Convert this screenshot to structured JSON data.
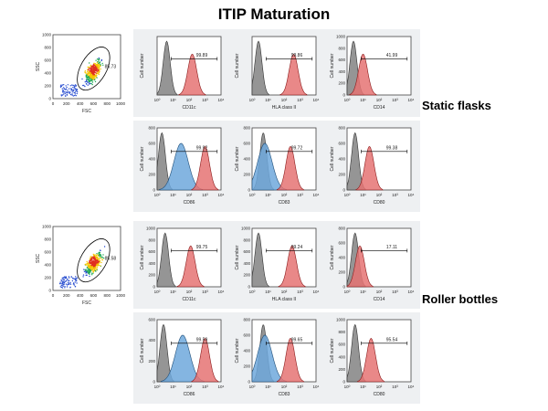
{
  "page_title": "ITIP Maturation",
  "colors": {
    "gray_fill": "#8a8a8a",
    "red_fill": "#e57373",
    "blue_fill": "#6fa8dc",
    "band": "#eef0f2"
  },
  "axis_label_cell_number": "Cell number",
  "log_ticks": [
    "10⁰",
    "10¹",
    "10²",
    "10³",
    "10⁴"
  ],
  "scatter_axes": {
    "xlabel": "FSC",
    "ylabel": "SSC",
    "xticks": [
      "0",
      "200",
      "400",
      "600",
      "800",
      "1000"
    ],
    "yticks": [
      "0",
      "200",
      "400",
      "600",
      "800",
      "1000"
    ]
  },
  "chart_data": [
    {
      "type": "scatter",
      "id": "s1-scatter",
      "group": "Static flasks",
      "gate_percent": "85.73",
      "xlabel": "FSC",
      "ylabel": "SSC",
      "xlim": [
        0,
        1000
      ],
      "ylim": [
        0,
        1000
      ]
    },
    {
      "type": "histogram",
      "id": "s1-cd11c",
      "marker": "CD11c",
      "percent": "99.89",
      "ylabel": "Cell number",
      "yticks": [],
      "peaks": {
        "gray": 0.6,
        "red": 2.2
      },
      "has_blue": false
    },
    {
      "type": "histogram",
      "id": "s1-hla",
      "marker": "HLA class II",
      "percent": "99.86",
      "ylabel": "Cell number",
      "yticks": [],
      "peaks": {
        "gray": 0.4,
        "red": 2.6
      },
      "has_blue": false
    },
    {
      "type": "histogram",
      "id": "s1-cd14",
      "marker": "CD14",
      "percent": "41.99",
      "ylabel": "Cell number",
      "yticks": [
        "0",
        "200",
        "400",
        "600",
        "800",
        "1000"
      ],
      "peaks": {
        "gray": 0.4,
        "red": 1.0
      },
      "has_blue": false
    },
    {
      "type": "histogram",
      "id": "s1-cd86",
      "marker": "CD86",
      "percent": "99.92",
      "ylabel": "Cell number",
      "yticks": [
        "0",
        "200",
        "400",
        "600",
        "800"
      ],
      "peaks": {
        "gray": 0.3,
        "blue": 1.5,
        "red": 3.0
      },
      "has_blue": true
    },
    {
      "type": "histogram",
      "id": "s1-cd83",
      "marker": "CD83",
      "percent": "99.72",
      "ylabel": "Cell number",
      "yticks": [
        "0",
        "200",
        "400",
        "600",
        "800"
      ],
      "peaks": {
        "gray": 0.7,
        "blue": 0.8,
        "red": 2.4
      },
      "has_blue": true
    },
    {
      "type": "histogram",
      "id": "s1-cd80",
      "marker": "CD80",
      "percent": "99.38",
      "ylabel": "Cell number",
      "yticks": [
        "0",
        "200",
        "400",
        "600",
        "800"
      ],
      "peaks": {
        "gray": 0.5,
        "red": 1.4
      },
      "has_blue": false
    },
    {
      "type": "scatter",
      "id": "s2-scatter",
      "group": "Roller bottles",
      "gate_percent": "85.58",
      "xlabel": "FSC",
      "ylabel": "SSC",
      "xlim": [
        0,
        1000
      ],
      "ylim": [
        0,
        1000
      ]
    },
    {
      "type": "histogram",
      "id": "s2-cd11c",
      "marker": "CD11c",
      "percent": "99.75",
      "ylabel": "Cell number",
      "yticks": [
        "0",
        "200",
        "400",
        "600",
        "800",
        "1000"
      ],
      "peaks": {
        "gray": 0.5,
        "red": 2.1
      },
      "has_blue": false
    },
    {
      "type": "histogram",
      "id": "s2-hla",
      "marker": "HLA class II",
      "percent": "99.24",
      "ylabel": "Cell number",
      "yticks": [
        "0",
        "200",
        "400",
        "600",
        "800",
        "1000"
      ],
      "peaks": {
        "gray": 0.4,
        "red": 2.5
      },
      "has_blue": false
    },
    {
      "type": "histogram",
      "id": "s2-cd14",
      "marker": "CD14",
      "percent": "17.11",
      "ylabel": "Cell number",
      "yticks": [
        "0",
        "200",
        "400",
        "600",
        "800"
      ],
      "peaks": {
        "gray": 0.5,
        "red": 0.8
      },
      "has_blue": false
    },
    {
      "type": "histogram",
      "id": "s2-cd86",
      "marker": "CD86",
      "percent": "99.59",
      "ylabel": "Cell number",
      "yticks": [
        "0",
        "200",
        "400",
        "600"
      ],
      "peaks": {
        "gray": 0.4,
        "blue": 1.6,
        "red": 3.0
      },
      "has_blue": true
    },
    {
      "type": "histogram",
      "id": "s2-cd83",
      "marker": "CD83",
      "percent": "99.65",
      "ylabel": "Cell number",
      "yticks": [
        "0",
        "200",
        "400",
        "600",
        "800"
      ],
      "peaks": {
        "gray": 0.7,
        "blue": 0.8,
        "red": 2.4
      },
      "has_blue": true
    },
    {
      "type": "histogram",
      "id": "s2-cd80",
      "marker": "CD80",
      "percent": "95.54",
      "ylabel": "Cell number",
      "yticks": [
        "0",
        "200",
        "400",
        "600",
        "800",
        "1000"
      ],
      "peaks": {
        "gray": 0.5,
        "red": 1.5
      },
      "has_blue": false
    }
  ],
  "conditions": {
    "static": "Static flasks",
    "roller": "Roller bottles"
  }
}
